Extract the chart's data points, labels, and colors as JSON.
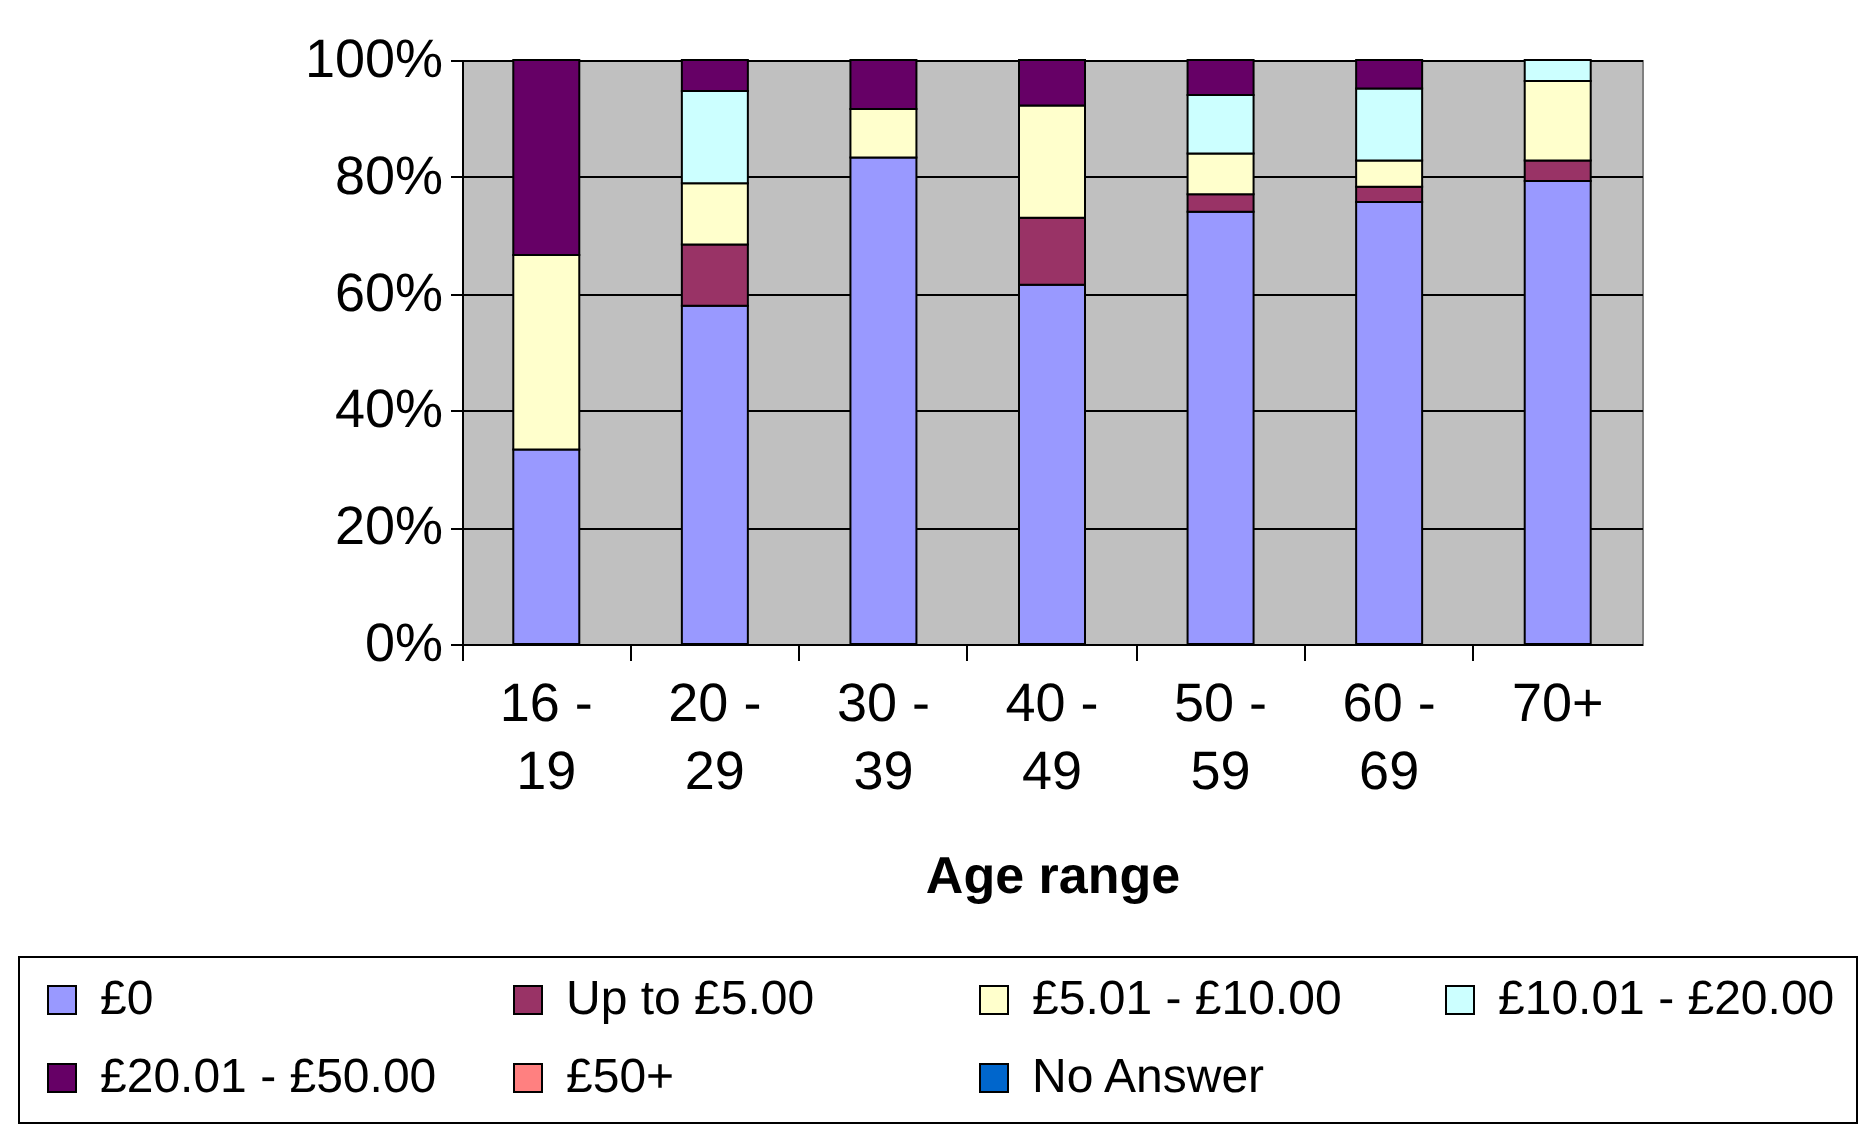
{
  "chart_data": {
    "type": "bar",
    "stacked": true,
    "xlabel": "Age range",
    "categories": [
      "16 - 19",
      "20 - 29",
      "30 - 39",
      "40 - 49",
      "50 - 59",
      "60 - 69",
      "70+"
    ],
    "series": [
      {
        "name": "£0",
        "color": "#9999ff",
        "values": [
          33.3,
          57.9,
          83.3,
          61.5,
          74,
          75.7,
          79.3
        ]
      },
      {
        "name": "Up to £5.00",
        "color": "#993366",
        "values": [
          0,
          10.5,
          0,
          11.5,
          3,
          2.6,
          3.5
        ]
      },
      {
        "name": "£5.01 - £10.00",
        "color": "#ffffcc",
        "values": [
          33.3,
          10.5,
          8.3,
          19.2,
          7,
          4.5,
          13.6
        ]
      },
      {
        "name": "£10.01 - £20.00",
        "color": "#ccffff",
        "values": [
          0,
          15.8,
          0,
          0,
          10,
          12.3,
          3.6
        ]
      },
      {
        "name": "£20.01 - £50.00",
        "color": "#660066",
        "values": [
          33.4,
          5.3,
          8.4,
          7.8,
          6,
          4.9,
          0
        ]
      },
      {
        "name": "£50+",
        "color": "#ff8080",
        "values": [
          0,
          0,
          0,
          0,
          0,
          0,
          0
        ]
      },
      {
        "name": "No Answer",
        "color": "#0066cc",
        "values": [
          0,
          0,
          0,
          0,
          0,
          0,
          0
        ]
      }
    ],
    "ylim": [
      0,
      100
    ],
    "yticks": [
      {
        "value": 0,
        "label": "0%"
      },
      {
        "value": 20,
        "label": "20%"
      },
      {
        "value": 40,
        "label": "40%"
      },
      {
        "value": 60,
        "label": "60%"
      },
      {
        "value": 80,
        "label": "80%"
      },
      {
        "value": 100,
        "label": "100%"
      }
    ],
    "grid": "y",
    "legend": "bottom"
  }
}
